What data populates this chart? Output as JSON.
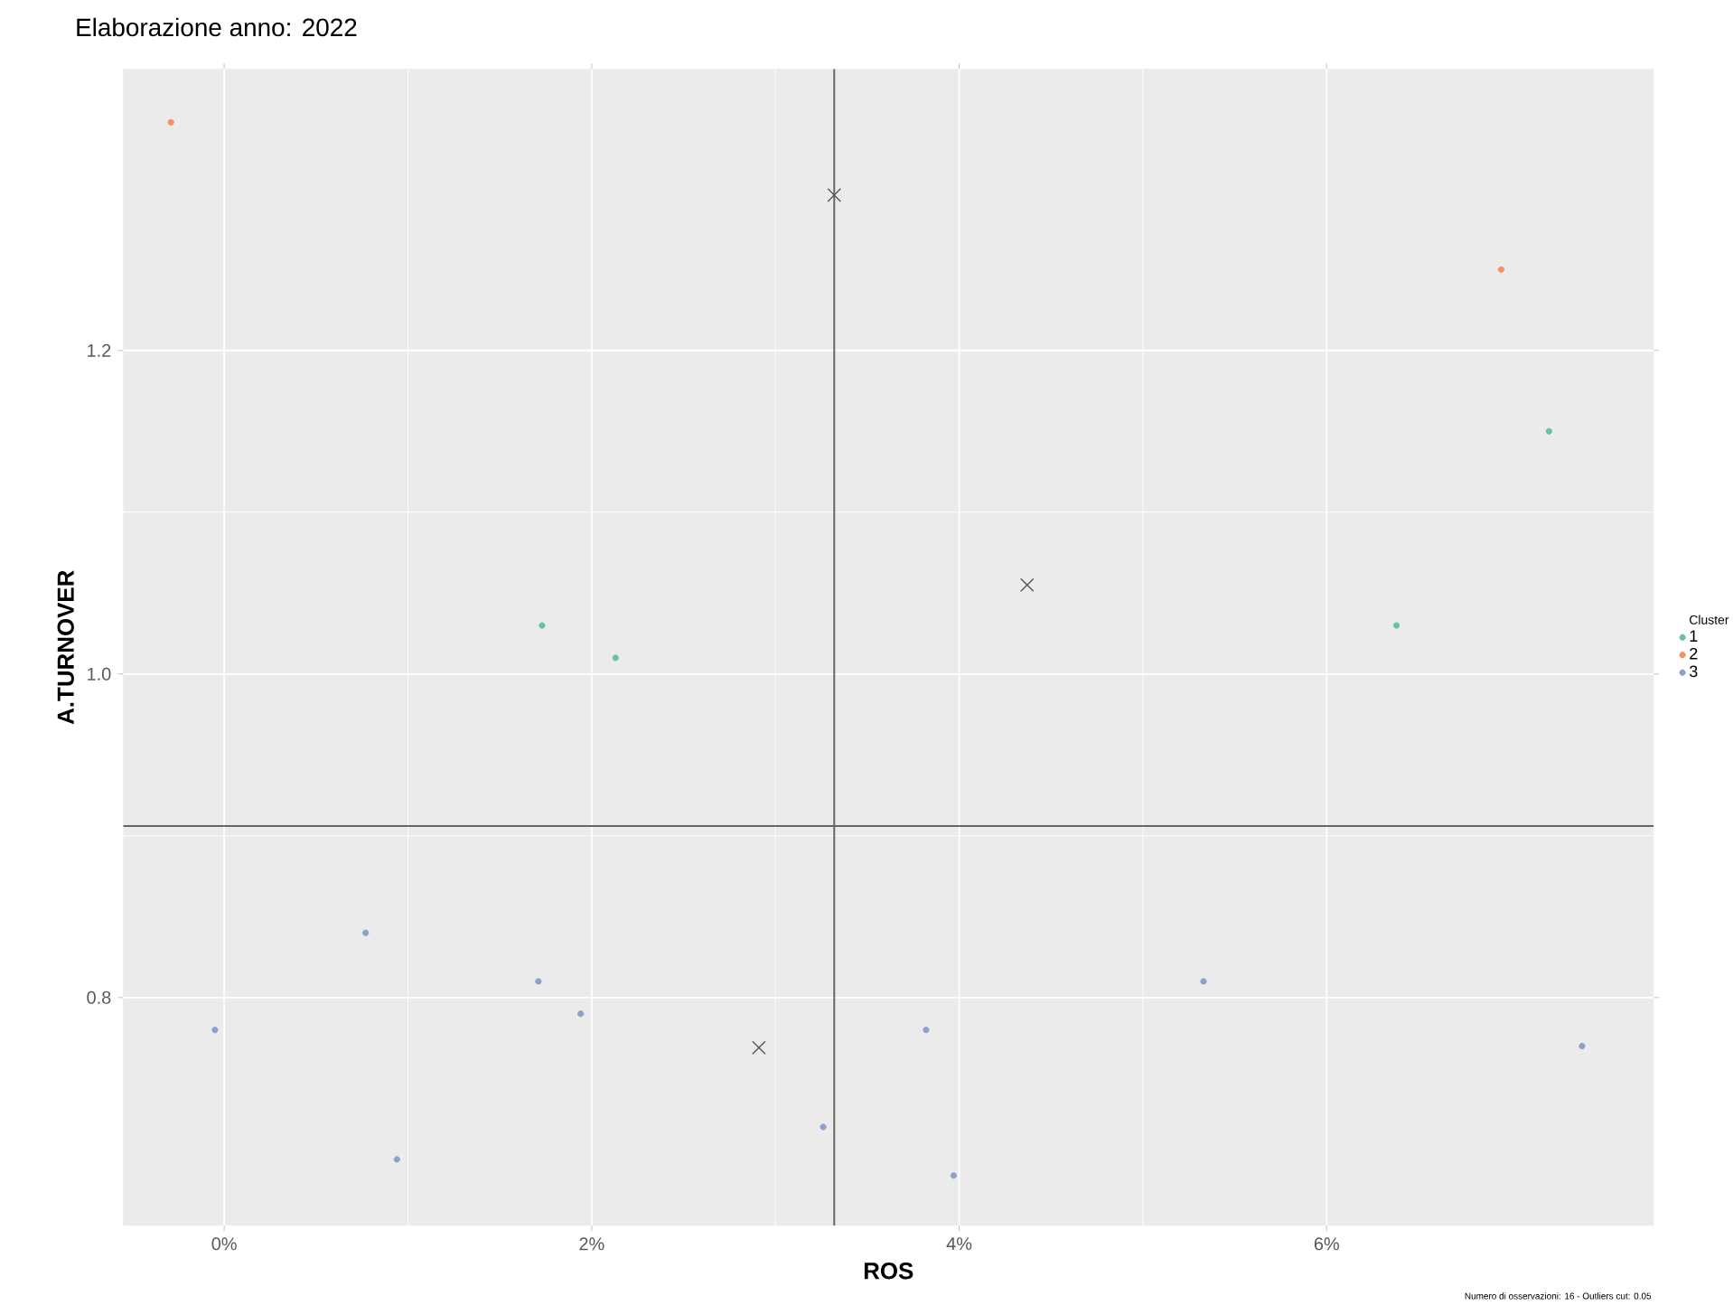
{
  "chart_data": {
    "type": "scatter",
    "title": "Elaborazione anno:  2022",
    "xlabel": "ROS",
    "ylabel": "A.TURNOVER",
    "legend_title": "Cluster",
    "series": [
      {
        "name": "1",
        "color": "#66c2a5",
        "marker": "circle",
        "x": [
          1.73,
          2.13,
          6.38,
          7.21
        ],
        "values": [
          1.03,
          1.01,
          1.03,
          1.15
        ]
      },
      {
        "name": "2",
        "color": "#fc8d62",
        "marker": "circle",
        "x": [
          -0.29,
          6.95
        ],
        "values": [
          1.341,
          1.25
        ]
      },
      {
        "name": "3",
        "color": "#8da0cb",
        "marker": "circle",
        "x": [
          -0.05,
          0.77,
          0.94,
          1.71,
          1.94,
          3.26,
          3.82,
          3.97,
          5.33,
          7.39
        ],
        "values": [
          0.78,
          0.84,
          0.7,
          0.81,
          0.79,
          0.72,
          0.78,
          0.69,
          0.81,
          0.77
        ]
      },
      {
        "color": "#555555",
        "marker": "cross",
        "x": [
          3.32,
          4.37,
          2.91
        ],
        "values": [
          1.296,
          1.055,
          0.769
        ]
      }
    ],
    "xlim": [
      -0.55,
      7.78
    ],
    "ylim": [
      0.659,
      1.374
    ],
    "xticks": [
      {
        "value": 0,
        "label": "0%"
      },
      {
        "value": 2,
        "label": "2%"
      },
      {
        "value": 4,
        "label": "4%"
      },
      {
        "value": 6,
        "label": "6%"
      }
    ],
    "yticks": [
      {
        "value": 0.8,
        "label": "0.8"
      },
      {
        "value": 1.0,
        "label": "1.0"
      },
      {
        "value": 1.2,
        "label": "1.2"
      }
    ],
    "ref_lines": [
      {
        "axis": "x",
        "value": 3.32,
        "color": "#666666"
      },
      {
        "axis": "y",
        "value": 0.906,
        "color": "#666666"
      }
    ],
    "grid": true,
    "legend": "right",
    "annotations": [
      "Numero di osservazioni: 16 - Outliers cut: 0.05"
    ]
  }
}
